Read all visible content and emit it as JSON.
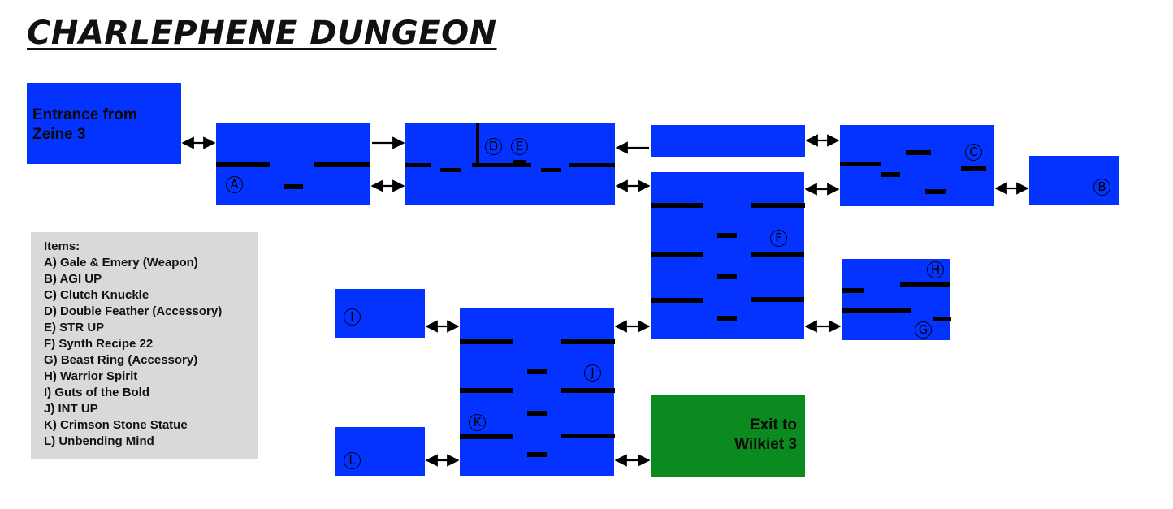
{
  "title": "CHARLEPHENE DUNGEON",
  "colors": {
    "room": "#0433ff",
    "exit_room": "#0a8a1f",
    "ledge": "#000000",
    "items_panel": "#d9d9d9"
  },
  "rooms": {
    "entrance": {
      "label_line1": "Entrance from",
      "label_line2": "Zeine 3"
    },
    "exit": {
      "label_line1": "Exit to",
      "label_line2": "Wilkiet 3"
    }
  },
  "markers": [
    "A",
    "B",
    "C",
    "D",
    "E",
    "F",
    "G",
    "H",
    "I",
    "J",
    "K",
    "L"
  ],
  "items_panel": {
    "heading": "Items:",
    "items": [
      "A) Gale & Emery (Weapon)",
      "B) AGI UP",
      "C) Clutch Knuckle",
      "D) Double Feather (Accessory)",
      "E) STR UP",
      "F) Synth Recipe 22",
      "G) Beast Ring (Accessory)",
      "H) Warrior Spirit",
      "I) Guts of the Bold",
      "J) INT UP",
      "K) Crimson Stone Statue",
      "L) Unbending Mind"
    ]
  }
}
